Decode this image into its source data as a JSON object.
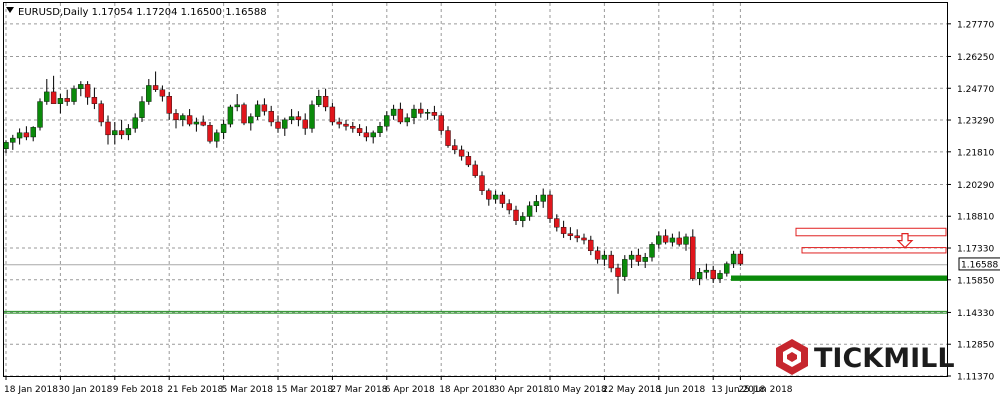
{
  "chart_data": {
    "type": "candlestick",
    "symbol_header": "EURUSD,Daily  1.17054 1.17204 1.16500 1.16588",
    "ylim": [
      1.1137,
      1.2874
    ],
    "y_ticks": [
      "1.27770",
      "1.26250",
      "1.24770",
      "1.23290",
      "1.21810",
      "1.20290",
      "1.18810",
      "1.17330",
      "1.15850",
      "1.14330",
      "1.12850",
      "1.11370"
    ],
    "x_labels": [
      "18 Jan 2018",
      "30 Jan 2018",
      "9 Feb 2018",
      "21 Feb 2018",
      "5 Mar 2018",
      "15 Mar 2018",
      "27 Mar 2018",
      "6 Apr 2018",
      "18 Apr 2018",
      "30 Apr 2018",
      "10 May 2018",
      "22 May 2018",
      "1 Jun 2018",
      "13 Jun 2018",
      "25 Jun 2018"
    ],
    "current_price": "1.16588",
    "horizontal_levels": [
      1.1655,
      1.1438,
      1.143
    ],
    "support_zone": [
      1.1605,
      1.158
    ],
    "resistance_zones": [
      [
        1.1825,
        1.179
      ],
      [
        1.1735,
        1.171
      ]
    ],
    "candles": [
      [
        1.2195,
        1.2235,
        1.2175,
        1.2225
      ],
      [
        1.2225,
        1.226,
        1.219,
        1.2245
      ],
      [
        1.2245,
        1.229,
        1.2215,
        1.227
      ],
      [
        1.227,
        1.23,
        1.2235,
        1.225
      ],
      [
        1.225,
        1.23,
        1.223,
        1.2295
      ],
      [
        1.2295,
        1.243,
        1.228,
        1.2415
      ],
      [
        1.2415,
        1.252,
        1.24,
        1.246
      ],
      [
        1.246,
        1.2535,
        1.242,
        1.2405
      ],
      [
        1.2405,
        1.245,
        1.236,
        1.243
      ],
      [
        1.243,
        1.247,
        1.2395,
        1.2415
      ],
      [
        1.2415,
        1.249,
        1.24,
        1.2475
      ],
      [
        1.2475,
        1.251,
        1.244,
        1.2495
      ],
      [
        1.2495,
        1.251,
        1.24,
        1.2435
      ],
      [
        1.2435,
        1.248,
        1.238,
        1.2405
      ],
      [
        1.2405,
        1.242,
        1.23,
        1.232
      ],
      [
        1.232,
        1.235,
        1.2215,
        1.226
      ],
      [
        1.226,
        1.232,
        1.2215,
        1.228
      ],
      [
        1.228,
        1.233,
        1.224,
        1.226
      ],
      [
        1.226,
        1.231,
        1.2235,
        1.229
      ],
      [
        1.229,
        1.236,
        1.227,
        1.234
      ],
      [
        1.234,
        1.244,
        1.232,
        1.2415
      ],
      [
        1.2415,
        1.252,
        1.24,
        1.249
      ],
      [
        1.249,
        1.2555,
        1.246,
        1.247
      ],
      [
        1.247,
        1.249,
        1.2415,
        1.244
      ],
      [
        1.244,
        1.246,
        1.233,
        1.236
      ],
      [
        1.236,
        1.238,
        1.229,
        1.233
      ],
      [
        1.233,
        1.236,
        1.23,
        1.235
      ],
      [
        1.235,
        1.238,
        1.23,
        1.231
      ],
      [
        1.231,
        1.234,
        1.2275,
        1.232
      ],
      [
        1.232,
        1.235,
        1.23,
        1.2305
      ],
      [
        1.2305,
        1.232,
        1.222,
        1.223
      ],
      [
        1.223,
        1.2285,
        1.22,
        1.227
      ],
      [
        1.227,
        1.233,
        1.224,
        1.231
      ],
      [
        1.231,
        1.24,
        1.2295,
        1.239
      ],
      [
        1.239,
        1.245,
        1.237,
        1.24
      ],
      [
        1.24,
        1.241,
        1.2305,
        1.2315
      ],
      [
        1.2315,
        1.236,
        1.228,
        1.2345
      ],
      [
        1.2345,
        1.242,
        1.233,
        1.24
      ],
      [
        1.24,
        1.243,
        1.235,
        1.237
      ],
      [
        1.237,
        1.2395,
        1.23,
        1.232
      ],
      [
        1.232,
        1.235,
        1.227,
        1.229
      ],
      [
        1.229,
        1.234,
        1.2255,
        1.233
      ],
      [
        1.233,
        1.238,
        1.231,
        1.2345
      ],
      [
        1.2345,
        1.237,
        1.23,
        1.233
      ],
      [
        1.233,
        1.236,
        1.226,
        1.229
      ],
      [
        1.229,
        1.242,
        1.227,
        1.24
      ],
      [
        1.24,
        1.247,
        1.239,
        1.244
      ],
      [
        1.244,
        1.2475,
        1.237,
        1.239
      ],
      [
        1.239,
        1.241,
        1.2305,
        1.232
      ],
      [
        1.232,
        1.234,
        1.229,
        1.231
      ],
      [
        1.231,
        1.233,
        1.228,
        1.23
      ],
      [
        1.23,
        1.232,
        1.227,
        1.229
      ],
      [
        1.229,
        1.231,
        1.2255,
        1.227
      ],
      [
        1.227,
        1.23,
        1.223,
        1.225
      ],
      [
        1.225,
        1.228,
        1.222,
        1.227
      ],
      [
        1.227,
        1.232,
        1.225,
        1.23
      ],
      [
        1.23,
        1.237,
        1.228,
        1.235
      ],
      [
        1.235,
        1.24,
        1.233,
        1.238
      ],
      [
        1.238,
        1.241,
        1.231,
        1.232
      ],
      [
        1.232,
        1.236,
        1.23,
        1.234
      ],
      [
        1.234,
        1.24,
        1.231,
        1.238
      ],
      [
        1.238,
        1.241,
        1.234,
        1.236
      ],
      [
        1.236,
        1.238,
        1.233,
        1.2365
      ],
      [
        1.2365,
        1.2395,
        1.233,
        1.235
      ],
      [
        1.235,
        1.236,
        1.226,
        1.228
      ],
      [
        1.228,
        1.23,
        1.22,
        1.221
      ],
      [
        1.221,
        1.224,
        1.217,
        1.219
      ],
      [
        1.219,
        1.221,
        1.214,
        1.216
      ],
      [
        1.216,
        1.218,
        1.211,
        1.212
      ],
      [
        1.212,
        1.214,
        1.206,
        1.207
      ],
      [
        1.207,
        1.209,
        1.198,
        1.2
      ],
      [
        1.2,
        1.201,
        1.193,
        1.196
      ],
      [
        1.196,
        1.2,
        1.194,
        1.198
      ],
      [
        1.198,
        1.1995,
        1.192,
        1.194
      ],
      [
        1.194,
        1.196,
        1.189,
        1.191
      ],
      [
        1.191,
        1.193,
        1.184,
        1.186
      ],
      [
        1.186,
        1.19,
        1.183,
        1.188
      ],
      [
        1.188,
        1.195,
        1.186,
        1.193
      ],
      [
        1.193,
        1.198,
        1.19,
        1.195
      ],
      [
        1.195,
        1.201,
        1.192,
        1.198
      ],
      [
        1.198,
        1.2,
        1.185,
        1.187
      ],
      [
        1.187,
        1.189,
        1.181,
        1.183
      ],
      [
        1.183,
        1.186,
        1.178,
        1.18
      ],
      [
        1.18,
        1.183,
        1.177,
        1.179
      ],
      [
        1.179,
        1.182,
        1.176,
        1.178
      ],
      [
        1.178,
        1.18,
        1.175,
        1.177
      ],
      [
        1.177,
        1.179,
        1.17,
        1.172
      ],
      [
        1.172,
        1.174,
        1.166,
        1.168
      ],
      [
        1.168,
        1.172,
        1.165,
        1.17
      ],
      [
        1.17,
        1.172,
        1.162,
        1.164
      ],
      [
        1.164,
        1.166,
        1.152,
        1.16
      ],
      [
        1.16,
        1.17,
        1.158,
        1.168
      ],
      [
        1.168,
        1.172,
        1.164,
        1.17
      ],
      [
        1.17,
        1.173,
        1.165,
        1.167
      ],
      [
        1.167,
        1.171,
        1.164,
        1.169
      ],
      [
        1.169,
        1.176,
        1.167,
        1.175
      ],
      [
        1.175,
        1.181,
        1.173,
        1.179
      ],
      [
        1.179,
        1.182,
        1.175,
        1.176
      ],
      [
        1.176,
        1.18,
        1.174,
        1.178
      ],
      [
        1.178,
        1.181,
        1.174,
        1.175
      ],
      [
        1.175,
        1.18,
        1.172,
        1.1785
      ],
      [
        1.1785,
        1.182,
        1.158,
        1.159
      ],
      [
        1.159,
        1.164,
        1.156,
        1.162
      ],
      [
        1.162,
        1.166,
        1.159,
        1.163
      ],
      [
        1.163,
        1.165,
        1.157,
        1.159
      ],
      [
        1.159,
        1.163,
        1.157,
        1.1615
      ],
      [
        1.1615,
        1.167,
        1.16,
        1.166
      ],
      [
        1.166,
        1.172,
        1.164,
        1.1705
      ],
      [
        1.1705,
        1.172,
        1.165,
        1.1659
      ]
    ]
  }
}
